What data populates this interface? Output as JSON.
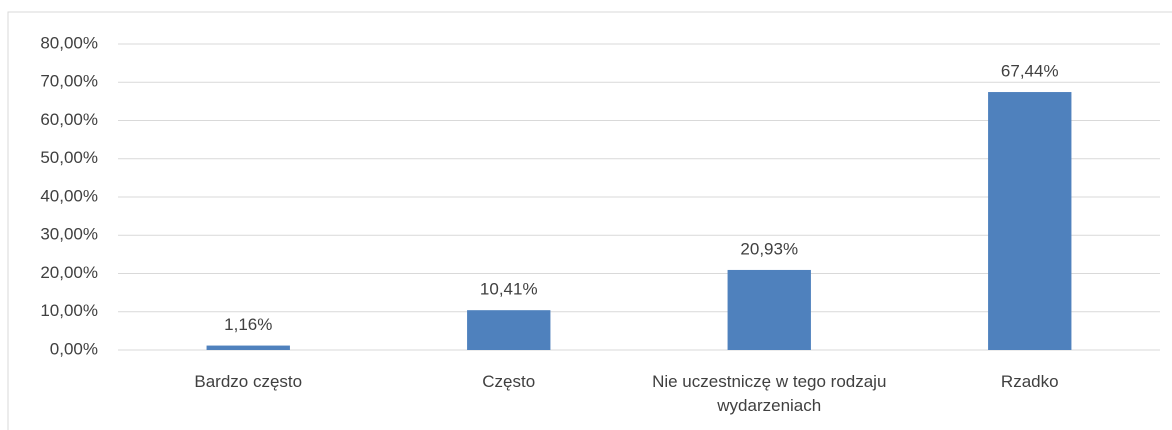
{
  "chart_data": {
    "type": "bar",
    "categories": [
      "Bardzo często",
      "Często",
      "Nie uczestniczę w tego rodzaju wydarzeniach",
      "Rzadko"
    ],
    "values": [
      1.16,
      10.41,
      20.93,
      67.44
    ],
    "value_labels": [
      "1,16%",
      "10,41%",
      "20,93%",
      "67,44%"
    ],
    "color": "#4f81bd",
    "ylim": [
      0,
      80
    ],
    "yticks": [
      {
        "value": 0,
        "label": "0,00%"
      },
      {
        "value": 10,
        "label": "10,00%"
      },
      {
        "value": 20,
        "label": "20,00%"
      },
      {
        "value": 30,
        "label": "30,00%"
      },
      {
        "value": 40,
        "label": "40,00%"
      },
      {
        "value": 50,
        "label": "50,00%"
      },
      {
        "value": 60,
        "label": "60,00%"
      },
      {
        "value": 70,
        "label": "70,00%"
      },
      {
        "value": 80,
        "label": "80,00%"
      }
    ],
    "grid": true
  }
}
